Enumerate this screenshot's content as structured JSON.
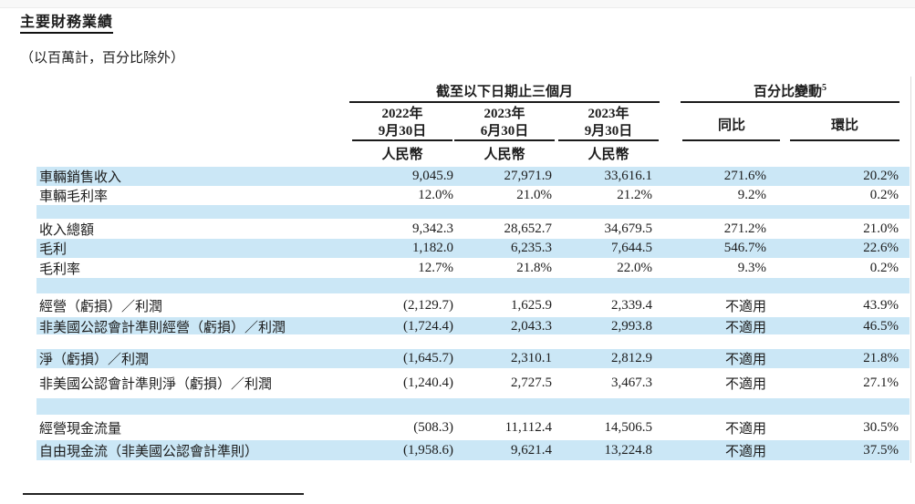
{
  "page": {
    "title": "主要財務業績",
    "units_note": "（以百萬計，百分比除外）"
  },
  "table": {
    "stripe_color": "#cbe7f6",
    "col_group_1": "截至以下日期止三個月",
    "col_group_2": "百分比變動",
    "col_group_2_footnote": "5",
    "period_cols": [
      {
        "line1": "2022年",
        "line2": "9月30日"
      },
      {
        "line1": "2023年",
        "line2": "6月30日"
      },
      {
        "line1": "2023年",
        "line2": "9月30日"
      }
    ],
    "currency_label": "人民幣",
    "yoy_label": "同比",
    "qoq_label": "環比",
    "rows": [
      {
        "type": "data",
        "label": "車輛銷售收入",
        "values": [
          "9,045.9",
          "27,971.9",
          "33,616.1",
          "271.6%",
          "20.2%"
        ]
      },
      {
        "type": "data",
        "label": "車輛毛利率",
        "values": [
          "12.0%",
          "21.0%",
          "21.2%",
          "9.2%",
          "0.2%"
        ]
      },
      {
        "type": "spacer",
        "label": "",
        "values": [
          "",
          "",
          "",
          "",
          ""
        ]
      },
      {
        "type": "data",
        "label": "收入總額",
        "values": [
          "9,342.3",
          "28,652.7",
          "34,679.5",
          "271.2%",
          "21.0%"
        ]
      },
      {
        "type": "data",
        "label": "毛利",
        "values": [
          "1,182.0",
          "6,235.3",
          "7,644.5",
          "546.7%",
          "22.6%"
        ]
      },
      {
        "type": "data",
        "label": "毛利率",
        "values": [
          "12.7%",
          "21.8%",
          "22.0%",
          "9.3%",
          "0.2%"
        ]
      },
      {
        "type": "spacer",
        "label": "",
        "values": [
          "",
          "",
          "",
          "",
          ""
        ]
      },
      {
        "type": "data",
        "label": "經營（虧損）／利潤",
        "values": [
          "(2,129.7)",
          "1,625.9",
          "2,339.4",
          "不適用",
          "43.9%"
        ]
      },
      {
        "type": "data",
        "label": "非美國公認會計準則經營（虧損）／利潤",
        "values": [
          "(1,724.4)",
          "2,043.3",
          "2,993.8",
          "不適用",
          "46.5%"
        ]
      },
      {
        "type": "spacer",
        "label": "",
        "values": [
          "",
          "",
          "",
          "",
          ""
        ]
      },
      {
        "type": "data",
        "label": "淨（虧損）／利潤",
        "values": [
          "(1,645.7)",
          "2,310.1",
          "2,812.9",
          "不適用",
          "21.8%"
        ]
      },
      {
        "type": "data",
        "label": "非美國公認會計準則淨（虧損）／利潤",
        "values": [
          "(1,240.4)",
          "2,727.5",
          "3,467.3",
          "不適用",
          "27.1%"
        ]
      },
      {
        "type": "spacer",
        "label": "",
        "values": [
          "",
          "",
          "",
          "",
          ""
        ]
      },
      {
        "type": "data",
        "label": "經營現金流量",
        "values": [
          "(508.3)",
          "11,112.4",
          "14,506.5",
          "不適用",
          "30.5%"
        ]
      },
      {
        "type": "data",
        "label": "自由現金流（非美國公認會計準則）",
        "values": [
          "(1,958.6)",
          "9,621.4",
          "13,224.8",
          "不適用",
          "37.5%"
        ]
      }
    ]
  }
}
